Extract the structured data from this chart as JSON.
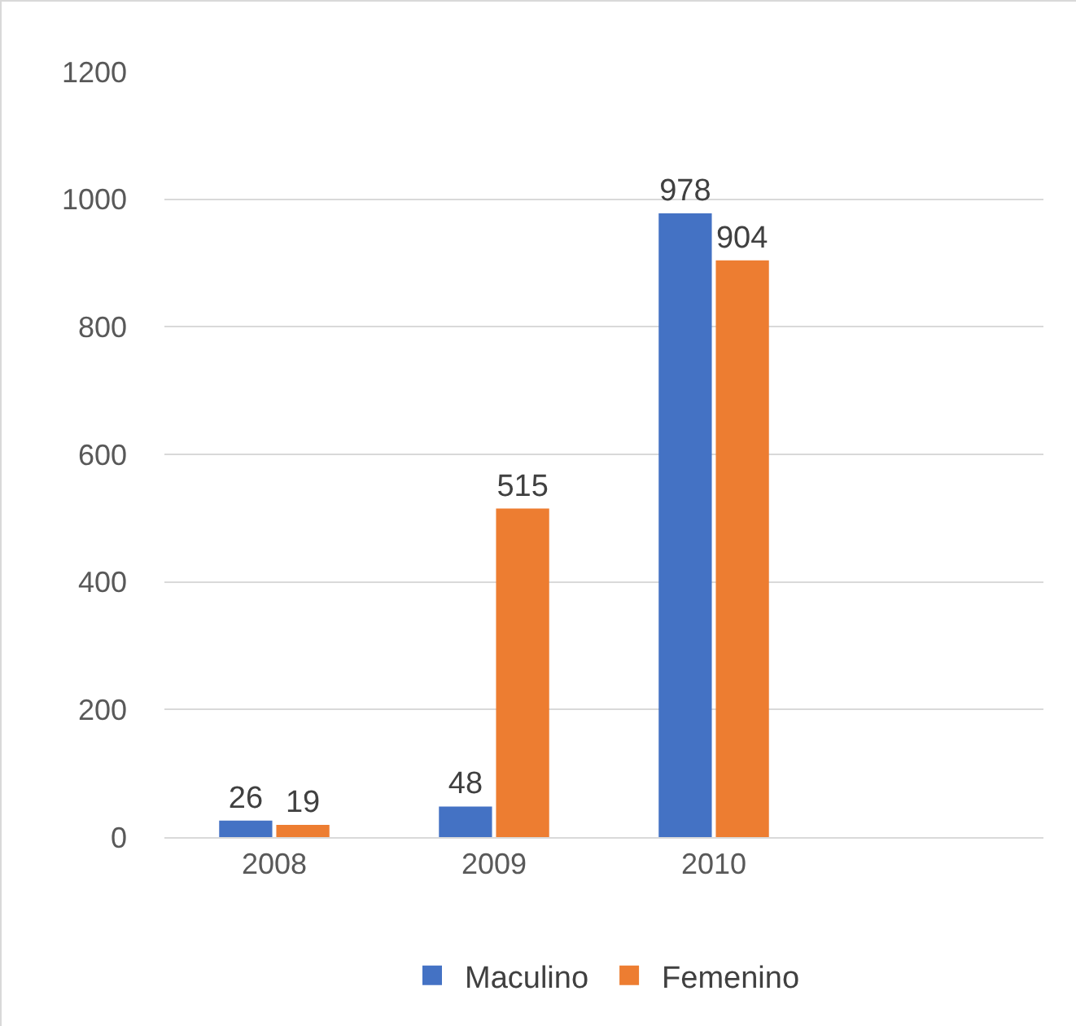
{
  "chart_data": {
    "type": "bar",
    "categories": [
      "2008",
      "2009",
      "2010",
      null
    ],
    "series": [
      {
        "name": "Maculino",
        "color": "#4472c4",
        "values": [
          26,
          48,
          978,
          null
        ]
      },
      {
        "name": "Femenino",
        "color": "#ed7d31",
        "values": [
          19,
          515,
          904,
          null
        ]
      }
    ],
    "ylim": [
      0,
      1200
    ],
    "yticks": [
      0,
      200,
      400,
      600,
      800,
      1000,
      1200
    ],
    "grid": "y",
    "legend": "bottom",
    "data_labels": true
  }
}
